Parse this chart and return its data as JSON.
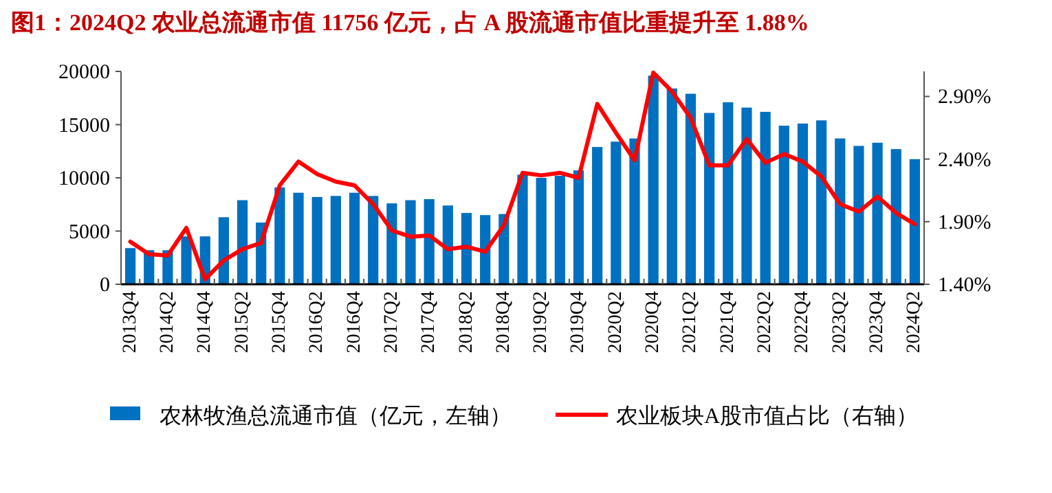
{
  "chart_data": {
    "type": "bar",
    "title": "图1：2024Q2 农业总流通市值 11756 亿元，占 A 股流通市值比重提升至 1.88%",
    "categories": [
      "2013Q4",
      null,
      "2014Q2",
      null,
      "2014Q4",
      null,
      "2015Q2",
      null,
      "2015Q4",
      null,
      "2016Q2",
      null,
      "2016Q4",
      null,
      "2017Q2",
      null,
      "2017Q4",
      null,
      "2018Q2",
      null,
      "2018Q4",
      null,
      "2019Q2",
      null,
      "2019Q4",
      null,
      "2020Q2",
      null,
      "2020Q4",
      null,
      "2021Q2",
      null,
      "2021Q4",
      null,
      "2022Q2",
      null,
      "2022Q4",
      null,
      "2023Q2",
      null,
      "2023Q4",
      null,
      "2024Q2"
    ],
    "series": [
      {
        "name": "农林牧渔总流通市值（亿元，左轴）",
        "color": "#0070c0",
        "values": [
          3400,
          3200,
          3200,
          4500,
          4500,
          6300,
          7900,
          5800,
          9100,
          8600,
          8200,
          8300,
          8600,
          8300,
          7600,
          7900,
          8000,
          7400,
          6700,
          6500,
          6600,
          10300,
          10000,
          10200,
          10700,
          12900,
          13400,
          13700,
          19600,
          18400,
          17900,
          16100,
          17100,
          16600,
          16200,
          14900,
          15100,
          15400,
          13700,
          13000,
          13300,
          12700,
          11756
        ]
      },
      {
        "name": "农业板块A股市值占比（右轴）",
        "type": "line",
        "axis": "y2",
        "color": "#ff0000",
        "values": [
          1.74,
          1.64,
          1.63,
          1.85,
          1.44,
          1.59,
          1.68,
          1.73,
          2.19,
          2.38,
          2.28,
          2.22,
          2.19,
          2.04,
          1.83,
          1.78,
          1.79,
          1.68,
          1.7,
          1.66,
          1.87,
          2.29,
          2.27,
          2.29,
          2.25,
          2.84,
          2.61,
          2.39,
          3.09,
          2.94,
          2.73,
          2.35,
          2.35,
          2.56,
          2.37,
          2.44,
          2.38,
          2.26,
          2.04,
          1.98,
          2.1,
          1.97,
          1.88
        ]
      }
    ],
    "ylim": [
      0,
      20000
    ],
    "yticks": [
      0,
      5000,
      10000,
      15000,
      20000
    ],
    "y2lim": [
      1.4,
      3.1
    ],
    "y2ticks": [
      {
        "value": 1.4,
        "label": "1.40%"
      },
      {
        "value": 1.9,
        "label": "1.90%"
      },
      {
        "value": 2.4,
        "label": "2.40%"
      },
      {
        "value": 2.9,
        "label": "2.90%"
      }
    ],
    "legend": "bottom",
    "grid": false
  }
}
